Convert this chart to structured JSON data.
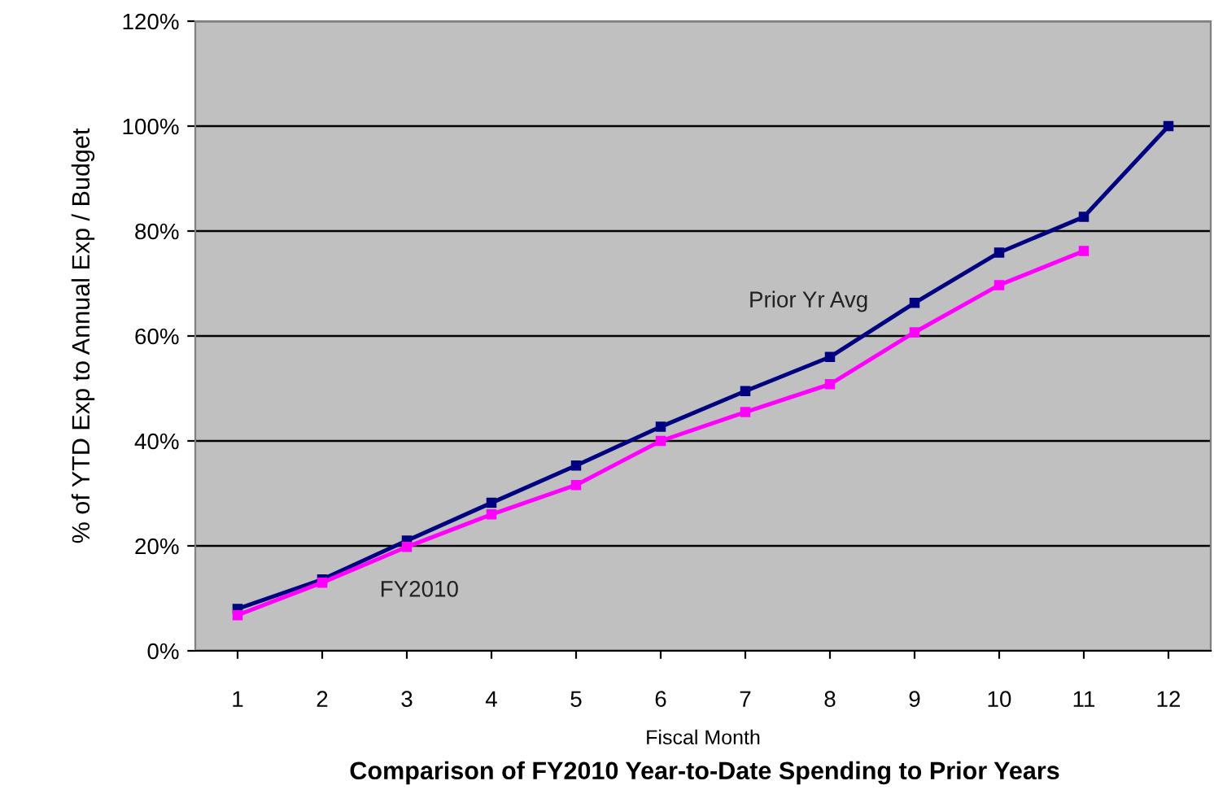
{
  "chart_data": {
    "type": "line",
    "title": "Comparison of FY2010 Year-to-Date Spending to Prior Years",
    "xlabel": "Fiscal Month",
    "ylabel": "% of YTD Exp to Annual Exp / Budget",
    "categories": [
      "1",
      "2",
      "3",
      "4",
      "5",
      "6",
      "7",
      "8",
      "9",
      "10",
      "11",
      "12"
    ],
    "series": [
      {
        "name": "Prior Yr Avg",
        "color": "#000080",
        "values": [
          8.0,
          13.6,
          21.0,
          28.2,
          35.3,
          42.7,
          49.5,
          56.0,
          66.3,
          75.9,
          82.7,
          100.0
        ]
      },
      {
        "name": "FY2010",
        "color": "#ff00ff",
        "values": [
          6.8,
          13.0,
          19.8,
          26.0,
          31.6,
          40.0,
          45.5,
          50.8,
          60.7,
          69.7,
          76.2,
          null
        ]
      }
    ],
    "ylim": [
      0,
      120
    ],
    "yticks": [
      {
        "value": 0,
        "label": "0%"
      },
      {
        "value": 20,
        "label": "20%"
      },
      {
        "value": 40,
        "label": "40%"
      },
      {
        "value": 60,
        "label": "60%"
      },
      {
        "value": 80,
        "label": "80%"
      },
      {
        "value": 100,
        "label": "100%"
      },
      {
        "value": 120,
        "label": "120%"
      }
    ],
    "grid": "y",
    "marker": "square",
    "line_style": "solid",
    "legend": false
  }
}
